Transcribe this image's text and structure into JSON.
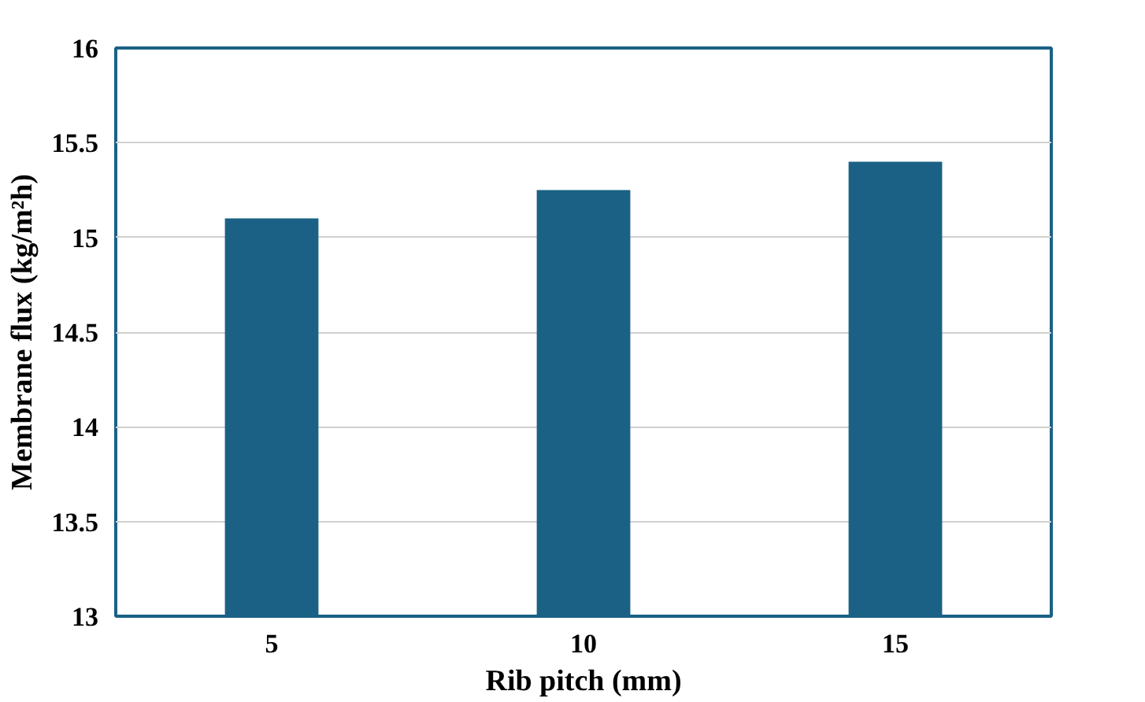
{
  "chart_data": {
    "type": "bar",
    "xlabel": "Rib pitch (mm)",
    "ylabel": "Membrane flux (kg/m²h)",
    "categories": [
      "5",
      "10",
      "15"
    ],
    "values": [
      15.1,
      15.25,
      15.4
    ],
    "color": "#1a6185",
    "ylim": [
      13,
      16
    ],
    "yticks": [
      13,
      13.5,
      14,
      14.5,
      15,
      15.5,
      16
    ],
    "grid": "y"
  }
}
